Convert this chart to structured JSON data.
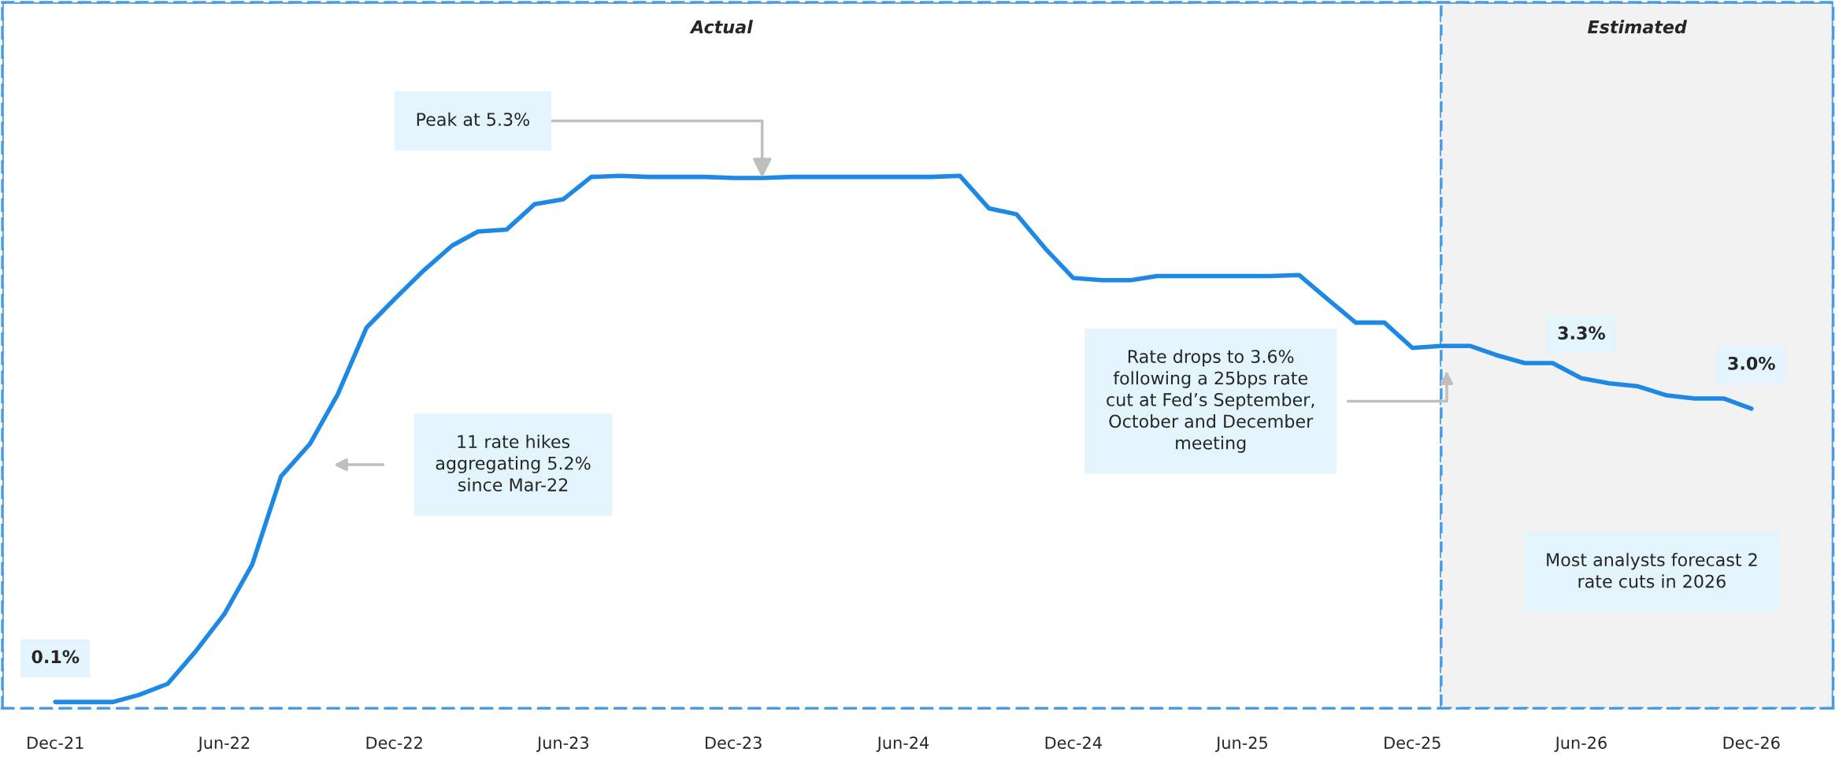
{
  "chart_data": {
    "type": "line",
    "color": "#1e88e5",
    "marker": "none",
    "line_style": "solid",
    "grid": false,
    "tick_labels": "x",
    "x": [
      "2021-12",
      "2022-01",
      "2022-02",
      "2022-03",
      "2022-04",
      "2022-05",
      "2022-06",
      "2022-07",
      "2022-08",
      "2022-09",
      "2022-10",
      "2022-11",
      "2022-12",
      "2023-01",
      "2023-02",
      "2023-03",
      "2023-04",
      "2023-05",
      "2023-06",
      "2023-07",
      "2023-08",
      "2023-09",
      "2023-10",
      "2023-11",
      "2023-12",
      "2024-01",
      "2024-02",
      "2024-03",
      "2024-04",
      "2024-05",
      "2024-06",
      "2024-07",
      "2024-08",
      "2024-09",
      "2024-10",
      "2024-11",
      "2024-12",
      "2025-01",
      "2025-02",
      "2025-03",
      "2025-04",
      "2025-05",
      "2025-06",
      "2025-07",
      "2025-08",
      "2025-09",
      "2025-10",
      "2025-11",
      "2025-12",
      "2026-01",
      "2026-02",
      "2026-03",
      "2026-04",
      "2026-05",
      "2026-06",
      "2026-07",
      "2026-08",
      "2026-09",
      "2026-10",
      "2026-11",
      "2026-12"
    ],
    "values": [
      0.1,
      0.1,
      0.1,
      0.17,
      0.28,
      0.6,
      0.97,
      1.46,
      2.33,
      2.65,
      3.14,
      3.8,
      4.08,
      4.36,
      4.61,
      4.75,
      4.77,
      5.02,
      5.07,
      5.29,
      5.3,
      5.29,
      5.29,
      5.29,
      5.28,
      5.28,
      5.29,
      5.29,
      5.29,
      5.29,
      5.29,
      5.29,
      5.3,
      4.98,
      4.92,
      4.58,
      4.29,
      4.27,
      4.27,
      4.31,
      4.31,
      4.31,
      4.31,
      4.31,
      4.32,
      4.08,
      3.85,
      3.85,
      3.6,
      3.62,
      3.62,
      3.53,
      3.45,
      3.45,
      3.3,
      3.25,
      3.22,
      3.13,
      3.1,
      3.1,
      3.0
    ],
    "value_labels": [
      "0.1%",
      null,
      null,
      null,
      null,
      null,
      null,
      null,
      null,
      null,
      null,
      null,
      null,
      null,
      null,
      null,
      null,
      null,
      null,
      null,
      null,
      null,
      null,
      null,
      null,
      null,
      null,
      null,
      null,
      null,
      null,
      null,
      null,
      null,
      null,
      null,
      null,
      null,
      null,
      null,
      null,
      null,
      null,
      null,
      null,
      null,
      null,
      null,
      null,
      null,
      null,
      null,
      null,
      null,
      "3.3%",
      null,
      null,
      null,
      null,
      null,
      "3.0%"
    ],
    "xlim": [
      "2021-10-05",
      "2027-02-27"
    ],
    "xticks": [
      {
        "value": "2021-12",
        "label": "Dec-21"
      },
      {
        "value": "2022-06",
        "label": "Jun-22"
      },
      {
        "value": "2022-12",
        "label": "Dec-22"
      },
      {
        "value": "2023-06",
        "label": "Jun-23"
      },
      {
        "value": "2023-12",
        "label": "Dec-23"
      },
      {
        "value": "2024-06",
        "label": "Jun-24"
      },
      {
        "value": "2024-12",
        "label": "Dec-24"
      },
      {
        "value": "2025-06",
        "label": "Jun-25"
      },
      {
        "value": "2025-12",
        "label": "Dec-25"
      },
      {
        "value": "2026-06",
        "label": "Jun-26"
      },
      {
        "value": "2026-12",
        "label": "Dec-26"
      }
    ],
    "bands": [
      {
        "axis": "x",
        "from": "2021-10-05",
        "to": "2026-01-01",
        "label": "Actual",
        "color": "#ffffff"
      },
      {
        "axis": "x",
        "from": "2026-01-01",
        "to": "2027-02-27",
        "label": "Estimated",
        "color": "#f2f2f2"
      }
    ],
    "annotations": [
      {
        "text": "Peak at 5.3%",
        "x": "2024-01",
        "y": 5.28
      },
      "11 rate hikes\naggregating 5.2%\nsince Mar-22",
      "Rate drops to 3.6%\nfollowing a 25bps rate\ncut at Fed’s September,\nOctober and December\nmeeting",
      "Most analysts forecast 2\nrate cuts in 2026"
    ]
  }
}
